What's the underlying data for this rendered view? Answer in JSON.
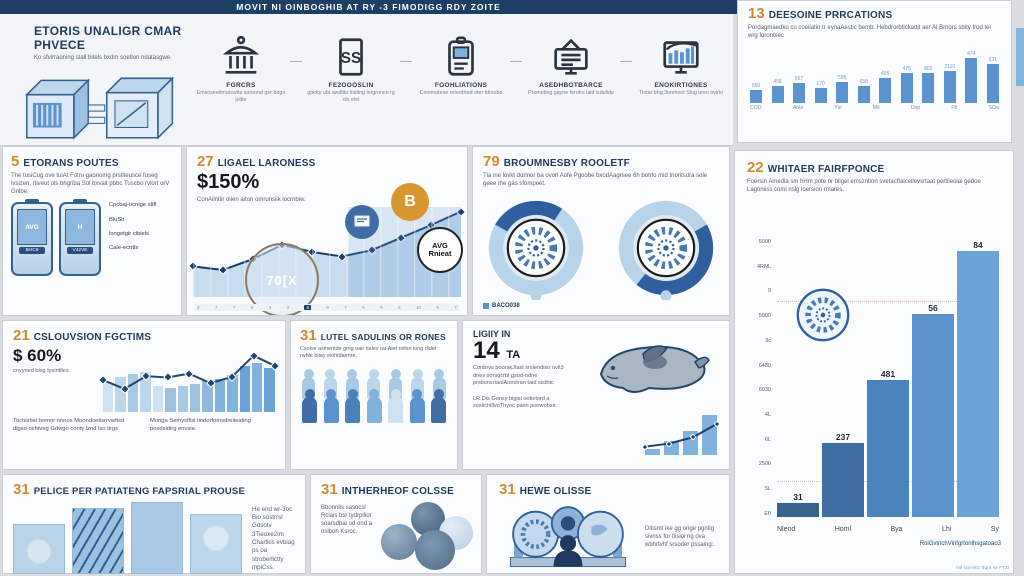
{
  "colors": {
    "navy": "#1d3f66",
    "orange": "#d18a2f",
    "blue": "#5b93cf",
    "lightblue": "#a9cae6",
    "paleblue": "#cfe2f2",
    "ink": "#1e3a5c",
    "body": "#5a6470",
    "bg": "#d9dde2",
    "card": "#fbfcfd",
    "border": "#c9ced4",
    "arc": "#2f5f9e"
  },
  "header": {
    "title": "MOVIT NI OINBOGHIB AT RY -3 FIMODIGG RDY ZOITE"
  },
  "intro": {
    "title": "ETORIS UNALIGR CMAR PHVECE",
    "subtitle": "Ko sfvlrraoning stall bitels bxdm soetlon ndatasgwe."
  },
  "flow": {
    "steps": [
      {
        "label": "FGRCRS",
        "desc": "Emsoseetimatswita soroond ger birgo joltte"
      },
      {
        "label": "FE2OOOSLIN",
        "desc": "gbirky ubt awdlito loiding lorgronce rg ols etel"
      },
      {
        "label": "FOOHLIATIONS",
        "desc": "Connnotese reterdrted oter tdrsobo"
      },
      {
        "label": "ASEDHBOTBARCE",
        "desc": "Promoting gayne ferotrs laid isdulide"
      },
      {
        "label": "ENOKIRTIONES",
        "desc": "Tiotar bhg 3onmoot Slug ureo ovirlo"
      }
    ]
  },
  "panels": {
    "prrcations": {
      "number": "13",
      "title": "DEESOINE PRRCATIONS",
      "body": "Pordagmaedku cu coeilatin tr eynaAestic bemb. Hebdrorbtickattit aer Al Brnors sbity trod tel wrg forontsec"
    },
    "etorans": {
      "number": "5",
      "title": "ETORANS POUTES",
      "body": "The tusiCug ove tuiAt Fotru gaoriomg prstiteusce fuseg ivsizen, rtiveut ols bhgriba Sol bxvait pbbc Tuscbo rvlort orV Gnlbe.",
      "devices": [
        {
          "label": "AVG",
          "sub": "BHC8"
        },
        {
          "label": "H",
          "sub": "V42VE"
        }
      ],
      "bullets": [
        "Cpcbaj-ocnige stifl",
        "BluSit",
        "longetgir cibiels",
        "Cale-ectrtls"
      ]
    },
    "ligael": {
      "number": "27",
      "title": "LIGAEL LARONESS",
      "stat": "$150%",
      "body": "ConAiintiir oiien aiton omrunsiik locrnbiw.",
      "badge_pct": "70[X",
      "badge_btc": "B",
      "badge_avg_line1": "AVG",
      "badge_avg_line2": "Rnieat"
    },
    "broumnesby": {
      "number": "79",
      "title": "BROUMNESBY ROOLETF",
      "body": "Tla ine lovkt dorinor ba ovorl Aofe Pgoobe bxodAagrsee 6h botrlo mid tnoritsdra sole geee the gas sfompoet."
    },
    "whitaer": {
      "number": "22",
      "title": "WHITAER FAIRFPONCE",
      "body": "Foersin Amedia sm hHm pote or bligel emszntion svetacftaicellevsrtaat pertileoiai gedoe Lagoniiss comi nslg loersion rmares.",
      "fine_print": "rvtl tacrvkrc tfqra rw FTZl"
    },
    "cslouvsion": {
      "number": "21",
      "title": "CSLOUVSION FGCTIMS",
      "stat": "$ 60%",
      "stat_note": "cnyyned blsg tysintiles.",
      "note1": "Toctsirtiel bomor nnnos Moondoetisrrvwfisd dlgso ochtveg Gdwgo conty lznd lso tirgs",
      "note2": "Moriga Semyslfisl tindorfomsdreileating posdsldirg envsie."
    },
    "lutel": {
      "number": "31",
      "title": "LUTEL SADULINS OR RONES",
      "body": "Csoive asmentde gmg oair rialev oa-Aiet nsfsn iong rlidet rwble bliay eiohtdaenre."
    },
    "ligiiy": {
      "kicker": "LIGIIY IN",
      "big": "14",
      "suffix": "TA",
      "body": "Conbrvs poorskJtasl srslendiso ovlt3 dnes sorsgcrbl gsod-ndne prstionsrtaolAiorstran taid sisthtc",
      "body2": "LR Dis Gonsy bigisl ootielord a sosiichillvoThyoc pasn poowobsir."
    },
    "pelice": {
      "number": "31",
      "title": "PELICE PER PATIATENG FAPSRIAL PROUSE",
      "body": "He eird wr-3oc Bio sostrrsl Gdsotv 3Tieoxe2im Chartkis evbiag ps oa stroberlictty mpiCss."
    },
    "intherheof": {
      "number": "31",
      "title": "INTHERHEOF COLSSE",
      "body": "Bbonnlis sasocsl Rciais bsr tydrpllior soarsdbai od ond a oslboh Ksroc."
    },
    "hewe": {
      "number": "31",
      "title": "HEWE OLISSE",
      "body": "Ditismt ike gg onge pgntig sivnss for tiisioi ng ova wbhrtvhf srsoder pssaing:."
    }
  },
  "chart_data": [
    {
      "type": "bar",
      "title": "DEESOINE PRRCATIONS",
      "values": [
        22,
        30,
        34,
        26,
        36,
        30,
        44,
        52,
        52,
        56,
        78,
        68
      ],
      "bar_labels": [
        "550",
        "458",
        "567",
        "170",
        "595",
        "658",
        "495",
        "475",
        "802",
        "2110",
        "474",
        "531"
      ],
      "x_ticks": [
        "COD",
        "Abbi",
        "Yio",
        "Mit",
        "Dsp",
        "Pit",
        "SOo"
      ],
      "bar_color": "#5b93cf",
      "ylim": [
        0,
        100
      ],
      "legend_position": "none"
    },
    {
      "type": "area-line",
      "title": "LIGAEL LARONESS trend",
      "values": [
        34,
        30,
        42,
        58,
        50,
        45,
        52,
        66,
        80,
        95
      ],
      "x_ticks": [
        "3",
        "7",
        "7",
        "5",
        "3",
        "3",
        "8",
        "9",
        "7",
        "5",
        "9",
        "3",
        "10",
        "5",
        "7"
      ],
      "x_tick_highlight": 6,
      "line_color": "#1f3a6e",
      "area_color": "#c7dcef",
      "ylim": [
        0,
        100
      ]
    },
    {
      "type": "pie",
      "title": "BROUMNESBY ROOLETF gauges",
      "gauges": [
        26,
        44
      ],
      "legend": "BACO038",
      "ring_color": "#b8d4ea",
      "arc_color": "#2f5f9e"
    },
    {
      "type": "bar",
      "title": "WHITAER FAIRFPONCE",
      "values": [
        5,
        27,
        50,
        74,
        97
      ],
      "bar_labels": [
        "31",
        "237",
        "481",
        "56",
        "84"
      ],
      "bar_colors": [
        "#36648f",
        "#3d6fa5",
        "#4d83bb",
        "#5d93cc",
        "#6ba3d6"
      ],
      "x_ticks": [
        "Nlend",
        "Homl",
        "Bya",
        "Lhi",
        "Sy"
      ],
      "y_ticks": [
        "5000",
        "4RNL",
        "9",
        "5900",
        "3c",
        "6480",
        "6030",
        "4L",
        "6L",
        "2500",
        "5L",
        "E0"
      ],
      "caption": "RoiGvtnchVinfgrtonlhsgatoao3",
      "ylim": [
        0,
        100
      ]
    },
    {
      "type": "combo",
      "title": "CSLOUVSION FGCTIMS",
      "values": [
        46,
        55,
        60,
        62,
        40,
        38,
        40,
        44,
        48,
        52,
        58,
        72,
        76,
        68
      ],
      "bar_colors": [
        "#cfe2f2",
        "#bcd6ec",
        "#a9cae6",
        "#bcd6ec",
        "#cfe2f2",
        "#9cc2e0",
        "#a9cae6",
        "#9cc2e0",
        "#8fb8de",
        "#7fb2dd",
        "#7fb2dd",
        "#6ba3d6",
        "#7fb2dd",
        "#6ba3d6"
      ],
      "line": [
        50,
        36,
        56,
        54,
        60,
        45,
        55,
        88,
        72
      ],
      "line_color": "#24466e",
      "ylim": [
        0,
        100
      ]
    },
    {
      "type": "combo",
      "title": "LIGIIY mini chart",
      "values": [
        12,
        26,
        46,
        76
      ],
      "bar_color": "#7fb2dd",
      "line": [
        16,
        22,
        34,
        60
      ],
      "line_color": "#1f3a6e",
      "ylim": [
        0,
        100
      ]
    }
  ]
}
